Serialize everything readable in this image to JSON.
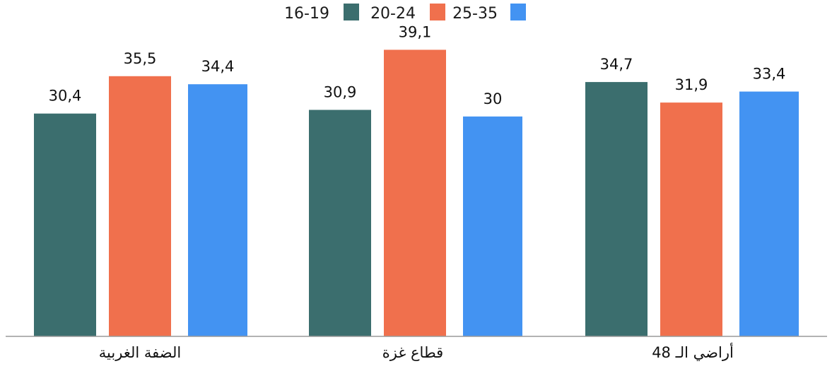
{
  "chart_data": {
    "type": "bar",
    "categories": [
      "الضفة الغربية",
      "قطاع غزة",
      "أراضي الـ 48"
    ],
    "series": [
      {
        "name": "16-19",
        "color": "#3b6e6e",
        "values": [
          30.4,
          30.9,
          34.7
        ],
        "labels": [
          "30,4",
          "30,9",
          "34,7"
        ]
      },
      {
        "name": "20-24",
        "color": "#f0704d",
        "values": [
          35.5,
          39.1,
          31.9
        ],
        "labels": [
          "35,5",
          "39,1",
          "31,9"
        ]
      },
      {
        "name": "25-35",
        "color": "#4393f2",
        "values": [
          34.4,
          30,
          33.4
        ],
        "labels": [
          "34,4",
          "30",
          "33,4"
        ]
      }
    ],
    "ylim": [
      0,
      43
    ],
    "legend_position": "top-center",
    "grid": false
  }
}
